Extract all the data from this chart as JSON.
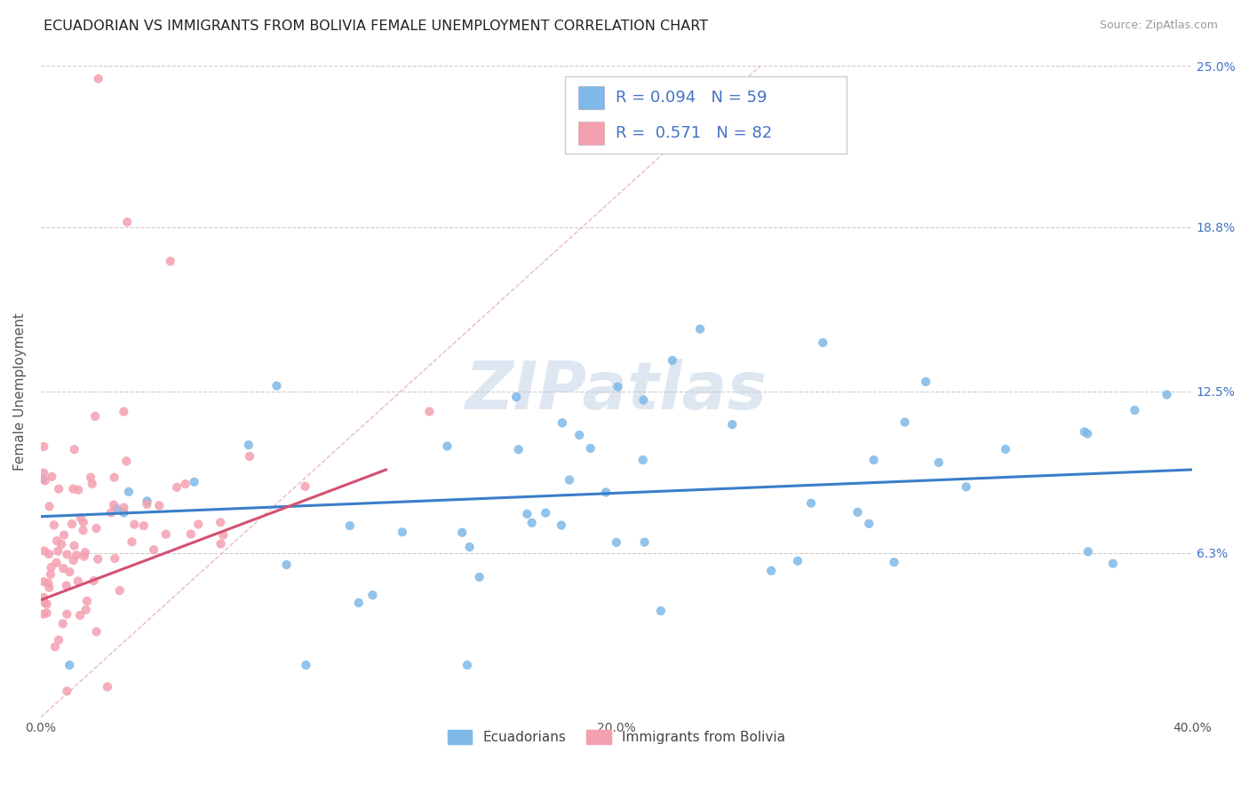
{
  "title": "ECUADORIAN VS IMMIGRANTS FROM BOLIVIA FEMALE UNEMPLOYMENT CORRELATION CHART",
  "source": "Source: ZipAtlas.com",
  "ylabel": "Female Unemployment",
  "watermark": "ZIPatlas",
  "r_ecuadorian": 0.094,
  "n_ecuadorian": 59,
  "r_bolivia": 0.571,
  "n_bolivia": 82,
  "xlim": [
    0.0,
    0.4
  ],
  "ylim": [
    0.0,
    0.25
  ],
  "yticks": [
    0.063,
    0.125,
    0.188,
    0.25
  ],
  "ytick_labels": [
    "6.3%",
    "12.5%",
    "18.8%",
    "25.0%"
  ],
  "xticks": [
    0.0,
    0.1,
    0.2,
    0.3,
    0.4
  ],
  "xtick_labels": [
    "0.0%",
    "",
    "20.0%",
    "",
    "40.0%"
  ],
  "color_ecuadorian": "#7EB9E8",
  "color_bolivia": "#F4A0B0",
  "trendline_ecuadorian": "#3A7EC8",
  "trendline_bolivia": "#D45070",
  "background_color": "#FFFFFF",
  "grid_color": "#CCCCCC",
  "legend_label_1": "Ecuadorians",
  "legend_label_2": "Immigrants from Bolivia"
}
